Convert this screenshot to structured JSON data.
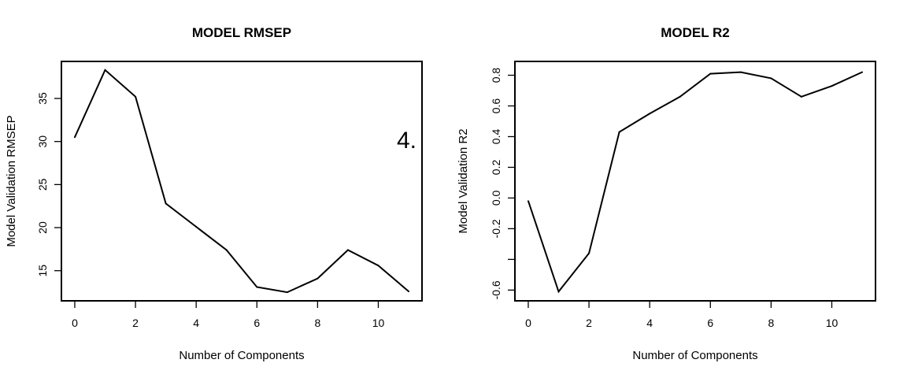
{
  "chart_data": [
    {
      "type": "line",
      "title": "MODEL RMSEP",
      "xlabel": "Number of Components",
      "ylabel": "Model Validation RMSEP",
      "xlim": [
        -0.44,
        11.44
      ],
      "ylim": [
        11.5,
        39.3
      ],
      "xticks": [
        0,
        2,
        4,
        6,
        8,
        10
      ],
      "yticks": [
        15,
        20,
        25,
        30,
        35
      ],
      "x": [
        0,
        1,
        2,
        3,
        4,
        5,
        6,
        7,
        8,
        9,
        10,
        11
      ],
      "y": [
        30.5,
        38.3,
        35.2,
        22.8,
        20.1,
        17.4,
        13.1,
        12.5,
        14.1,
        17.4,
        15.6,
        12.6
      ],
      "color": "#000000",
      "annotation": "4."
    },
    {
      "type": "line",
      "title": "MODEL R2",
      "xlabel": "Number of Components",
      "ylabel": "Model Validation R2",
      "xlim": [
        -0.44,
        11.44
      ],
      "ylim": [
        -0.67,
        0.89
      ],
      "xticks": [
        0,
        2,
        4,
        6,
        8,
        10
      ],
      "yticks": [
        -0.6,
        -0.4,
        -0.2,
        0.0,
        0.2,
        0.4,
        0.6,
        0.8
      ],
      "ytick_labels": [
        "-0.6",
        "",
        "-0.2",
        "0.0",
        "0.2",
        "0.4",
        "0.6",
        "0.8"
      ],
      "x": [
        0,
        1,
        2,
        3,
        4,
        5,
        6,
        7,
        8,
        9,
        10,
        11
      ],
      "y": [
        -0.02,
        -0.61,
        -0.36,
        0.43,
        0.55,
        0.66,
        0.81,
        0.82,
        0.78,
        0.66,
        0.73,
        0.82
      ],
      "color": "#000000"
    }
  ]
}
